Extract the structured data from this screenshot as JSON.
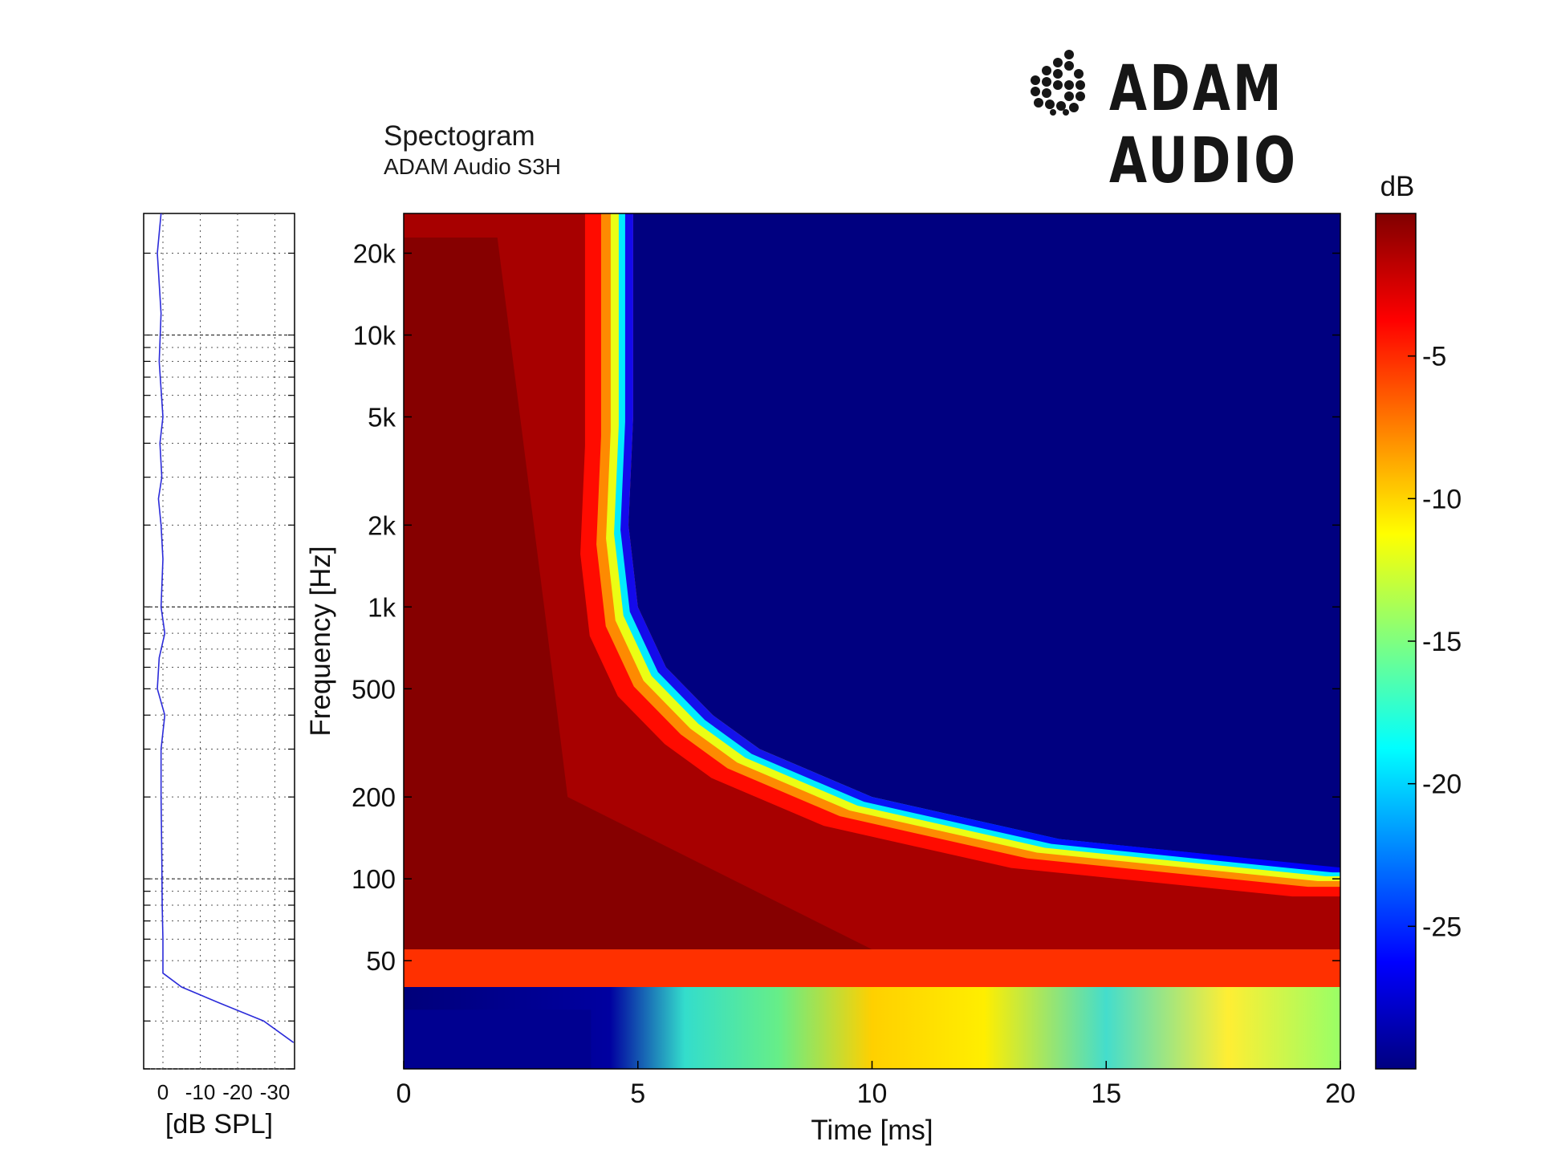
{
  "header": {
    "title": "Spectogram",
    "subtitle": "ADAM Audio S3H",
    "brand": "ADAM AUDIO"
  },
  "colors": {
    "jet_low": "#000080",
    "jet_high": "#800000",
    "response_line": "#2b2bd9"
  },
  "chart_data": [
    {
      "type": "heatmap",
      "title": "Spectogram",
      "subtitle": "ADAM Audio S3H",
      "xlabel": "Time [ms]",
      "ylabel": "Frequency [Hz]",
      "xlim": [
        0,
        20
      ],
      "ylim": [
        20,
        28000
      ],
      "y_scale": "log",
      "x_ticks": [
        0,
        5,
        10,
        15,
        20
      ],
      "x_tick_labels": [
        "0",
        "5",
        "10",
        "15",
        "20"
      ],
      "y_ticks": [
        50,
        100,
        200,
        500,
        1000,
        2000,
        5000,
        10000,
        20000
      ],
      "y_tick_labels": [
        "50",
        "100",
        "200",
        "500",
        "1k",
        "2k",
        "5k",
        "10k",
        "20k"
      ],
      "colorbar": {
        "label": "dB",
        "range": [
          -30,
          0
        ],
        "ticks": [
          -5,
          -10,
          -15,
          -20,
          -25
        ],
        "tick_labels": [
          "-5",
          "-10",
          "-15",
          "-20",
          "-25"
        ]
      },
      "decay_edge": [
        {
          "frequency": 25000,
          "time_ms": 4.9
        },
        {
          "frequency": 5000,
          "time_ms": 4.9
        },
        {
          "frequency": 2000,
          "time_ms": 4.8
        },
        {
          "frequency": 1000,
          "time_ms": 5.0
        },
        {
          "frequency": 600,
          "time_ms": 5.6
        },
        {
          "frequency": 400,
          "time_ms": 6.6
        },
        {
          "frequency": 300,
          "time_ms": 7.6
        },
        {
          "frequency": 200,
          "time_ms": 10.0
        },
        {
          "frequency": 140,
          "time_ms": 14.0
        },
        {
          "frequency": 110,
          "time_ms": 20.0
        }
      ]
    },
    {
      "type": "line",
      "xlabel": "[dB SPL]",
      "x_ticks": [
        0,
        -10,
        -20,
        -30
      ],
      "x_tick_labels": [
        "0",
        "-10",
        "-20",
        "-30"
      ],
      "y_scale": "log",
      "series": [
        {
          "x": [
            0.5,
            1.5,
            0.5,
            1.0,
            0.0,
            0.8,
            0.3,
            1.2,
            0.5,
            0.0,
            0.5,
            -0.5,
            1.0,
            1.5,
            -0.5,
            0.5,
            0.5,
            0.3,
            0.2,
            0.0,
            0.0,
            -5.0,
            -15.0,
            -27.0,
            -35.0
          ],
          "y": [
            28000,
            20000,
            12000,
            8000,
            5000,
            4000,
            3000,
            2500,
            2000,
            1500,
            1000,
            800,
            650,
            500,
            400,
            300,
            200,
            120,
            80,
            60,
            45,
            40,
            35,
            30,
            25
          ]
        }
      ]
    }
  ]
}
